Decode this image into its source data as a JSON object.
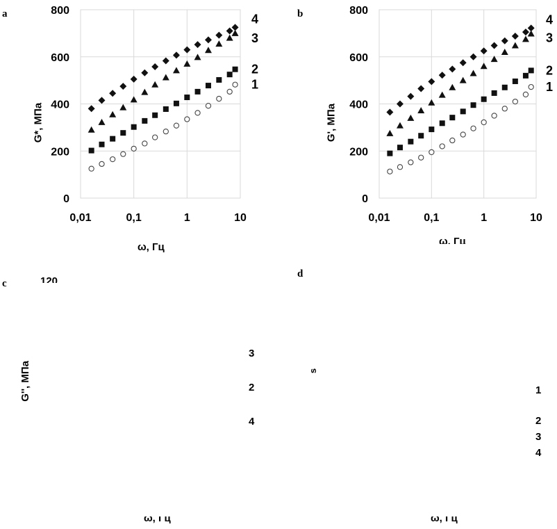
{
  "panels": {
    "a": {
      "letter": "a",
      "ylabel": "G*, МПа",
      "xlabel": "ω, Гц"
    },
    "b": {
      "letter": "b",
      "ylabel": "G', МПа",
      "xlabel": "ω, Гц"
    },
    "c": {
      "letter": "c",
      "ytick_fragment": "120",
      "ylabel_fragment": "G'', МПа",
      "curve_labels": [
        "3",
        "2",
        "4"
      ],
      "xlabel": "ω, Гц"
    },
    "d": {
      "letter": "d",
      "ylabel_fragment": "s",
      "curve_labels": [
        "1",
        "2",
        "3",
        "4"
      ],
      "xlabel": "ω, Гц"
    }
  },
  "chart_data": [
    {
      "panel": "a",
      "type": "scatter",
      "xscale": "log",
      "xlim": [
        0.01,
        10
      ],
      "ylim": [
        0,
        800
      ],
      "xticks": [
        "0,01",
        "0,1",
        "1",
        "10"
      ],
      "yticks": [
        "0",
        "200",
        "400",
        "600",
        "800"
      ],
      "ylabel": "G*, МПа",
      "xlabel": "ω, Гц",
      "grid": true,
      "series": [
        {
          "name": "4",
          "marker": "diamond",
          "label": "4",
          "x": [
            0.016,
            0.025,
            0.04,
            0.063,
            0.1,
            0.16,
            0.25,
            0.4,
            0.63,
            1.0,
            1.58,
            2.51,
            3.98,
            6.31,
            8.0
          ],
          "values": [
            380,
            415,
            445,
            475,
            505,
            532,
            558,
            583,
            607,
            630,
            652,
            672,
            692,
            710,
            725
          ]
        },
        {
          "name": "3",
          "marker": "triangle",
          "label": "3",
          "x": [
            0.016,
            0.025,
            0.04,
            0.063,
            0.1,
            0.16,
            0.25,
            0.4,
            0.63,
            1.0,
            1.58,
            2.51,
            3.98,
            6.31,
            8.0
          ],
          "values": [
            290,
            322,
            355,
            385,
            418,
            450,
            482,
            512,
            542,
            570,
            598,
            628,
            655,
            680,
            700
          ]
        },
        {
          "name": "2",
          "marker": "square",
          "label": "2",
          "x": [
            0.016,
            0.025,
            0.04,
            0.063,
            0.1,
            0.16,
            0.25,
            0.4,
            0.63,
            1.0,
            1.58,
            2.51,
            3.98,
            6.31,
            8.0
          ],
          "values": [
            202,
            228,
            252,
            277,
            302,
            328,
            352,
            378,
            402,
            428,
            452,
            478,
            502,
            525,
            547
          ]
        },
        {
          "name": "1",
          "marker": "circle-open",
          "label": "1",
          "x": [
            0.016,
            0.025,
            0.04,
            0.063,
            0.1,
            0.16,
            0.25,
            0.4,
            0.63,
            1.0,
            1.58,
            2.51,
            3.98,
            6.31,
            8.0
          ],
          "values": [
            125,
            145,
            165,
            187,
            210,
            232,
            258,
            283,
            308,
            335,
            362,
            392,
            422,
            452,
            482
          ]
        }
      ]
    },
    {
      "panel": "b",
      "type": "scatter",
      "xscale": "log",
      "xlim": [
        0.01,
        10
      ],
      "ylim": [
        0,
        800
      ],
      "xticks": [
        "0,01",
        "0,1",
        "1",
        "10"
      ],
      "yticks": [
        "0",
        "200",
        "400",
        "600",
        "800"
      ],
      "ylabel": "G', МПа",
      "xlabel": "ω, Гц",
      "grid": true,
      "series": [
        {
          "name": "4",
          "marker": "diamond",
          "label": "4",
          "x": [
            0.016,
            0.025,
            0.04,
            0.063,
            0.1,
            0.16,
            0.25,
            0.4,
            0.63,
            1.0,
            1.58,
            2.51,
            3.98,
            6.31,
            8.0
          ],
          "values": [
            365,
            400,
            432,
            465,
            495,
            522,
            548,
            575,
            600,
            625,
            648,
            668,
            688,
            705,
            722
          ]
        },
        {
          "name": "3",
          "marker": "triangle",
          "label": "3",
          "x": [
            0.016,
            0.025,
            0.04,
            0.063,
            0.1,
            0.16,
            0.25,
            0.4,
            0.63,
            1.0,
            1.58,
            2.51,
            3.98,
            6.31,
            8.0
          ],
          "values": [
            275,
            308,
            340,
            372,
            405,
            438,
            470,
            500,
            530,
            560,
            590,
            620,
            648,
            675,
            698
          ]
        },
        {
          "name": "2",
          "marker": "square",
          "label": "2",
          "x": [
            0.016,
            0.025,
            0.04,
            0.063,
            0.1,
            0.16,
            0.25,
            0.4,
            0.63,
            1.0,
            1.58,
            2.51,
            3.98,
            6.31,
            8.0
          ],
          "values": [
            190,
            215,
            240,
            265,
            292,
            318,
            342,
            368,
            395,
            420,
            446,
            470,
            496,
            520,
            542
          ]
        },
        {
          "name": "1",
          "marker": "circle-open",
          "label": "1",
          "x": [
            0.016,
            0.025,
            0.04,
            0.063,
            0.1,
            0.16,
            0.25,
            0.4,
            0.63,
            1.0,
            1.58,
            2.51,
            3.98,
            6.31,
            8.0
          ],
          "values": [
            113,
            132,
            152,
            172,
            195,
            220,
            245,
            270,
            296,
            322,
            350,
            380,
            410,
            440,
            472
          ]
        }
      ]
    }
  ]
}
